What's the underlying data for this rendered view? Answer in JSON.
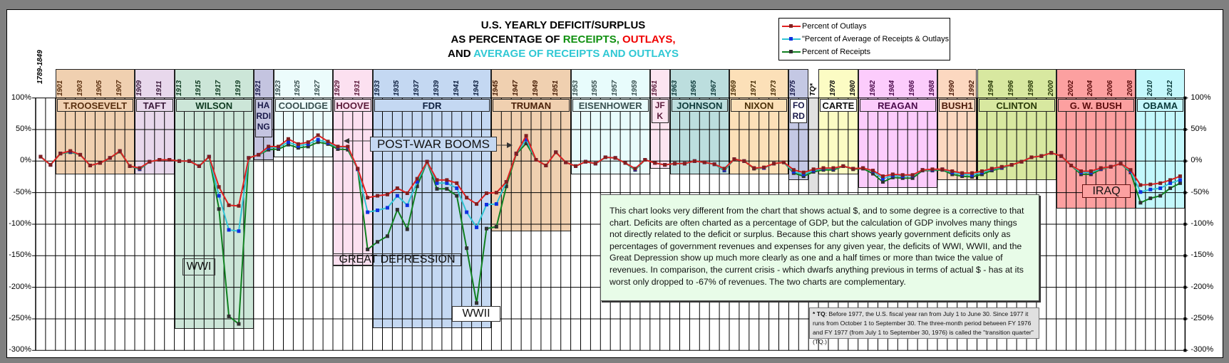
{
  "title": {
    "line1": "U.S. YEARLY DEFICIT/SURPLUS",
    "line2_prefix": "AS PERCENTAGE OF ",
    "line2_receipts": "RECEIPTS,",
    "line2_outlays": " OUTLAYS,",
    "line3_prefix": "AND ",
    "line3_average": "AVERAGE OF RECEIPTS AND OUTLAYS"
  },
  "colors": {
    "outlays": "#e02020",
    "average": "#30c4d4",
    "receipts": "#108020",
    "average_marker": "#1030e0",
    "outlays_marker": "#802020",
    "receipts_marker": "#303030"
  },
  "legend": [
    {
      "label": "Percent of Outlays",
      "series": "outlays"
    },
    {
      "label": "\"Percent of Average of Receipts & Outlays",
      "series": "average"
    },
    {
      "label": "Percent of Receipts",
      "series": "receipts"
    }
  ],
  "annotations": {
    "post_war_booms": "POST-WAR BOOMS",
    "great_depression": "GREAT DEPRESSION",
    "wwi": "WWI",
    "wwii": "WWII",
    "iraq": "IRAQ"
  },
  "textbox": "This chart looks very different from the chart that shows actual $, and to some degree is a corrective to that chart. Deficits are often charted as a percentage of GDP, but the calculation of GDP involves many things not directly related to the deficit or surplus. Because this chart shows yearly government deficits only as percentages of government revenues and expenses for any given year, the deficits of WWI, WWII, and the Great Depression show up much more clearly as one and a half times or more than twice the value of revenues. In comparison, the current crisis - which dwarfs anything previous in terms of actual $ - has at its worst only dropped to -67% of revenues.  The two charts are complementary.",
  "note": {
    "star": "*",
    "tq": "TQ",
    "text": ": Before 1977, the U.S. fiscal year ran from July 1 to June 30.  Since 1977 it runs from October 1 to September 30.  The three-month period between FY 1976 and FY 1977 (from July 1 to September 30, 1976) is called the \"transition quarter\"(TQ.)"
  },
  "chart_data": {
    "type": "line",
    "title": "U.S. YEARLY DEFICIT/SURPLUS AS PERCENTAGE OF RECEIPTS, OUTLAYS, AND AVERAGE OF RECEIPTS AND OUTLAYS",
    "ylim": [
      -300,
      100
    ],
    "yticks": [
      100,
      50,
      0,
      -50,
      -100,
      -150,
      -200,
      -250,
      -300
    ],
    "ytick_labels": [
      "100%",
      "50%",
      "0%",
      "-50%",
      "-100%",
      "-150%",
      "-200%",
      "-250%",
      "-300%"
    ],
    "grid": true,
    "legend_position": "top-right",
    "categories": [
      "1789-1849",
      "",
      "1901",
      "1902",
      "1903",
      "1904",
      "1905",
      "1906",
      "1907",
      "1908",
      "1909",
      "1910",
      "1911",
      "1912",
      "1913",
      "1914",
      "1915",
      "1916",
      "1917",
      "1918",
      "1919",
      "1920",
      "1921",
      "1922",
      "1923",
      "1924",
      "1925",
      "1926",
      "1927",
      "1928",
      "1929",
      "1930",
      "1931",
      "1932",
      "1933",
      "1934",
      "1935",
      "1936",
      "1937",
      "1938",
      "1939",
      "1940",
      "1941",
      "1942",
      "1943",
      "1944",
      "1945",
      "1946",
      "1947",
      "1948",
      "1949",
      "1950",
      "1951",
      "1952",
      "1953",
      "1954",
      "1955",
      "1956",
      "1957",
      "1958",
      "1959",
      "1960",
      "1961",
      "1962",
      "1963",
      "1964",
      "1965",
      "1966",
      "1967",
      "1968",
      "1969",
      "1970",
      "1971",
      "1972",
      "1973",
      "1974",
      "1975",
      "1976",
      "TQ",
      "1977",
      "1978",
      "1979",
      "1980",
      "1981",
      "1982",
      "1983",
      "1984",
      "1985",
      "1986",
      "1987",
      "1988",
      "1989",
      "1990",
      "1991",
      "1992",
      "1993",
      "1994",
      "1995",
      "1996",
      "1997",
      "1998",
      "1999",
      "2000",
      "2001",
      "2002",
      "2003",
      "2004",
      "2005",
      "2006",
      "2007",
      "2008",
      "2009",
      "2010",
      "2011",
      "2012",
      "2013"
    ],
    "x_tick_labels": [
      "1789-1849",
      "1901",
      "1903",
      "1905",
      "1907",
      "1909",
      "1911",
      "1913",
      "1915",
      "1917",
      "1919",
      "1921",
      "1923",
      "1925",
      "1927",
      "1929",
      "1931",
      "1933",
      "1935",
      "1937",
      "1939",
      "1941",
      "1943",
      "1945",
      "1947",
      "1949",
      "1951",
      "1953",
      "1955",
      "1957",
      "1959",
      "1961",
      "1963",
      "1965",
      "1967",
      "1969",
      "1971",
      "1973",
      "1975",
      "TQ*",
      "1978",
      "1980",
      "1982",
      "1984",
      "1986",
      "1988",
      "1990",
      "1992",
      "1994",
      "1996",
      "1998",
      "2000",
      "2002",
      "2004",
      "2006",
      "2008",
      "2010",
      "2012"
    ],
    "series": [
      {
        "name": "Percent of Outlays",
        "key": "outlays",
        "values": [
          7,
          -6,
          12,
          16,
          10,
          -7,
          -3,
          5,
          16,
          -8,
          -11,
          -1,
          2,
          2,
          0,
          0,
          -8,
          7,
          -41,
          -70,
          -71,
          5,
          10,
          23,
          23,
          35,
          27,
          30,
          41,
          31,
          23,
          23,
          -12,
          -58,
          -55,
          -53,
          -43,
          -51,
          -28,
          -1,
          -30,
          -30,
          -35,
          -58,
          -68,
          -51,
          -50,
          -33,
          12,
          40,
          2,
          -7,
          14,
          -2,
          -8,
          -1,
          -4,
          6,
          5,
          -3,
          -12,
          2,
          -3,
          -6,
          -4,
          -4,
          0,
          -2,
          -5,
          -12,
          3,
          0,
          -11,
          -10,
          -4,
          -2,
          -14,
          -18,
          -13,
          -11,
          -11,
          -8,
          -12,
          -11,
          -15,
          -24,
          -21,
          -22,
          -22,
          -14,
          -13,
          -13,
          -16,
          -19,
          -19,
          -16,
          -12,
          -9,
          -6,
          -1,
          6,
          8,
          13,
          8,
          -7,
          -16,
          -16,
          -11,
          -9,
          -4,
          -14,
          -38,
          -37,
          -35,
          -30,
          -24
        ]
      },
      {
        "name": "Percent of Average of Receipts & Outlays",
        "key": "average",
        "values": [
          7,
          -6,
          12,
          15,
          10,
          -7,
          -3,
          5,
          16,
          -8,
          -12,
          -1,
          2,
          2,
          0,
          0,
          -8,
          7,
          -55,
          -109,
          -111,
          5,
          10,
          21,
          22,
          30,
          24,
          27,
          34,
          29,
          22,
          22,
          -13,
          -81,
          -78,
          -74,
          -55,
          -70,
          -33,
          -1,
          -35,
          -35,
          -43,
          -81,
          -105,
          -69,
          -68,
          -33,
          12,
          34,
          2,
          -7,
          14,
          -2,
          -8,
          -1,
          -4,
          6,
          5,
          -3,
          -13,
          2,
          -3,
          -6,
          -4,
          -4,
          0,
          -2,
          -5,
          -14,
          3,
          0,
          -11,
          -11,
          -4,
          -2,
          -17,
          -21,
          -15,
          -12,
          -12,
          -8,
          -12,
          -11,
          -16,
          -28,
          -23,
          -24,
          -23,
          -14,
          -14,
          -13,
          -18,
          -21,
          -22,
          -18,
          -13,
          -10,
          -6,
          -1,
          6,
          8,
          13,
          8,
          -7,
          -18,
          -18,
          -12,
          -9,
          -4,
          -16,
          -49,
          -45,
          -43,
          -35,
          -30
        ]
      },
      {
        "name": "Percent of Receipts",
        "key": "receipts",
        "values": [
          7,
          -6,
          12,
          14,
          10,
          -7,
          -3,
          5,
          15,
          -8,
          -13,
          -1,
          2,
          2,
          0,
          0,
          -8,
          7,
          -76,
          -246,
          -258,
          5,
          10,
          18,
          19,
          26,
          21,
          23,
          30,
          27,
          19,
          18,
          -13,
          -140,
          -128,
          -119,
          -77,
          -108,
          -40,
          -1,
          -44,
          -44,
          -55,
          -138,
          -225,
          -107,
          -104,
          -40,
          11,
          28,
          2,
          -7,
          14,
          -2,
          -8,
          -1,
          -4,
          6,
          5,
          -3,
          -14,
          2,
          -3,
          -6,
          -4,
          -4,
          0,
          -2,
          -5,
          -15,
          3,
          0,
          -12,
          -11,
          -4,
          -2,
          -19,
          -24,
          -17,
          -14,
          -14,
          -8,
          -13,
          -12,
          -20,
          -33,
          -26,
          -27,
          -27,
          -15,
          -15,
          -14,
          -21,
          -24,
          -25,
          -21,
          -15,
          -11,
          -6,
          -1,
          6,
          8,
          13,
          8,
          -7,
          -21,
          -21,
          -13,
          -9,
          -4,
          -18,
          -66,
          -59,
          -55,
          -43,
          -35
        ]
      }
    ],
    "presidents": [
      {
        "name": "T.ROOSEVELT",
        "from": "1901",
        "to": "1908",
        "color": "#f0d0b0",
        "text": "#5a3010"
      },
      {
        "name": "TAFT",
        "from": "1909",
        "to": "1912",
        "color": "#e8d8ec",
        "text": "#3a1a3a"
      },
      {
        "name": "WILSON",
        "from": "1913",
        "to": "1920",
        "color": "#cce6d8",
        "text": "#0e3a20"
      },
      {
        "name": "HARDING",
        "from": "1921",
        "to": "1922",
        "color": "#c4c4e0",
        "text": "#1a1a4a"
      },
      {
        "name": "COOLIDGE",
        "from": "1923",
        "to": "1928",
        "color": "#ecfcfc",
        "text": "#3a5050"
      },
      {
        "name": "HOOVER",
        "from": "1929",
        "to": "1932",
        "color": "#fce0f0",
        "text": "#5a1a3a"
      },
      {
        "name": "FDR",
        "from": "1933",
        "to": "1944",
        "color": "#c4d8f2",
        "text": "#0e2040"
      },
      {
        "name": "TRUMAN",
        "from": "1945",
        "to": "1952",
        "color": "#f0d0b0",
        "text": "#4a2008"
      },
      {
        "name": "EISENHOWER",
        "from": "1953",
        "to": "1960",
        "color": "#e8fcfc",
        "text": "#3a5050"
      },
      {
        "name": "JFK",
        "from": "1961",
        "to": "1962",
        "color": "#fce4f0",
        "text": "#5a1a3a"
      },
      {
        "name": "JOHNSON",
        "from": "1963",
        "to": "1968",
        "color": "#bcdede",
        "text": "#0e3a3a"
      },
      {
        "name": "NIXON",
        "from": "1969",
        "to": "1974",
        "color": "#fce0b8",
        "text": "#4a3008"
      },
      {
        "name": "FORD",
        "from": "1975",
        "to": "1976",
        "color": "#c4c8e4",
        "text": "#1a1a4a"
      },
      {
        "name": "CARTER",
        "from": "1977",
        "to": "1980",
        "color": "#fcfcc4",
        "text": "#111111"
      },
      {
        "name": "REAGAN",
        "from": "1981",
        "to": "1988",
        "color": "#fcccfc",
        "text": "#4a0a4a"
      },
      {
        "name": "BUSH1",
        "from": "1989",
        "to": "1992",
        "color": "#fcd8c0",
        "text": "#4a1a08"
      },
      {
        "name": "CLINTON",
        "from": "1993",
        "to": "2000",
        "color": "#d8e8a0",
        "text": "#2a3a08"
      },
      {
        "name": "G. W. BUSH",
        "from": "2001",
        "to": "2008",
        "color": "#fca0a0",
        "text": "#5a0a0a"
      },
      {
        "name": "OBAMA",
        "from": "2009",
        "to": "2013",
        "color": "#c4f8fc",
        "text": "#0a3a3a"
      }
    ]
  }
}
